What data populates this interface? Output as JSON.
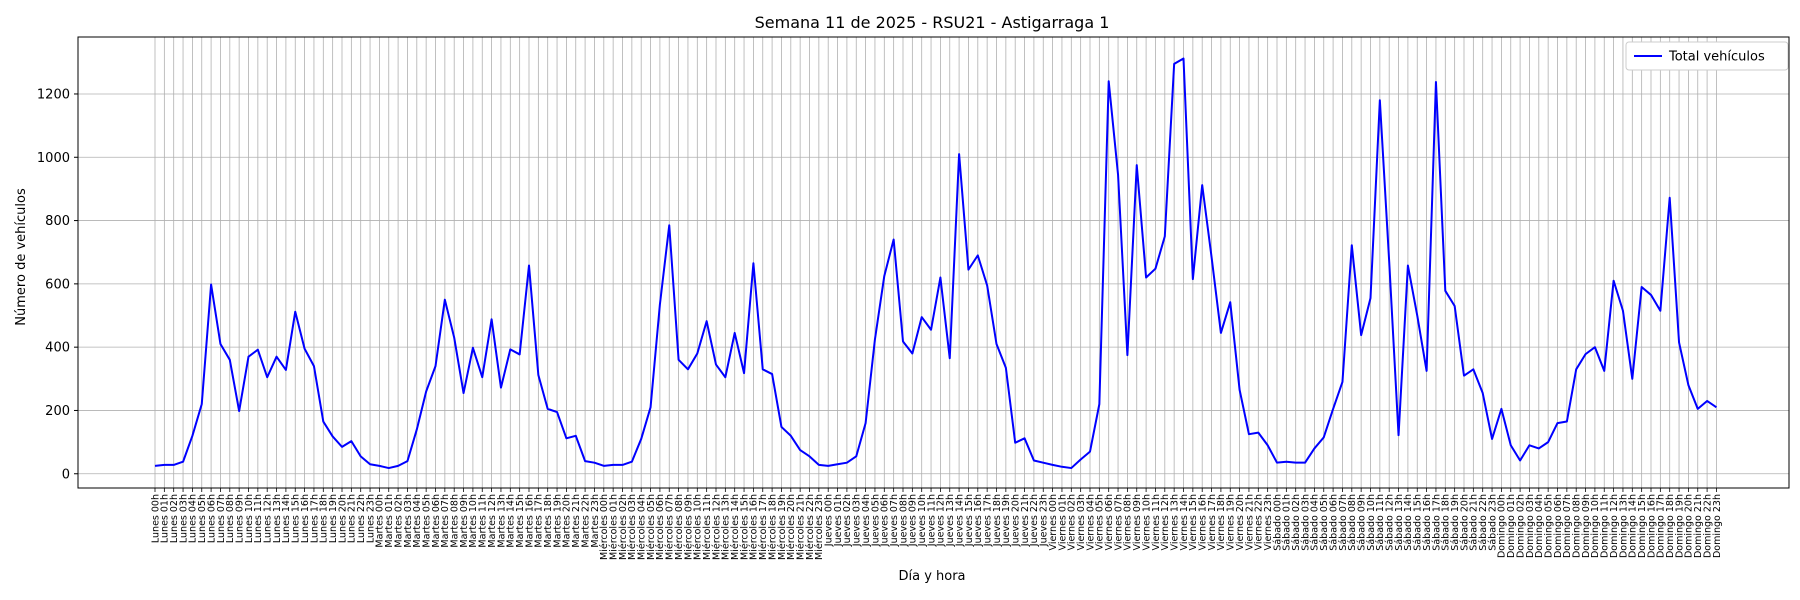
{
  "chart_data": {
    "type": "line",
    "title": "Semana 11 de 2025 - RSU21 - Astigarraga 1",
    "xlabel": "Día y hora",
    "ylabel": "Número de vehículos",
    "ylim": [
      -45,
      1380
    ],
    "yticks": [
      0,
      200,
      400,
      600,
      800,
      1000,
      1200
    ],
    "grid": true,
    "legend_position": "top-right",
    "days": [
      "Lunes",
      "Martes",
      "Miércoles",
      "Jueves",
      "Viernes",
      "Sábado",
      "Domingo"
    ],
    "hours": [
      "00h",
      "01h",
      "02h",
      "03h",
      "04h",
      "05h",
      "06h",
      "07h",
      "08h",
      "09h",
      "10h",
      "11h",
      "12h",
      "13h",
      "14h",
      "15h",
      "16h",
      "17h",
      "18h",
      "19h",
      "20h",
      "21h",
      "22h",
      "23h"
    ],
    "series": [
      {
        "name": "Total vehículos",
        "color": "#0000ff",
        "values": [
          25,
          28,
          28,
          38,
          120,
          220,
          598,
          410,
          360,
          198,
          370,
          392,
          305,
          370,
          328,
          512,
          395,
          340,
          165,
          118,
          85,
          103,
          55,
          30,
          25,
          18,
          25,
          40,
          140,
          260,
          340,
          550,
          430,
          255,
          398,
          305,
          488,
          272,
          393,
          377,
          658,
          312,
          205,
          195,
          112,
          120,
          40,
          35,
          25,
          28,
          28,
          38,
          110,
          210,
          535,
          785,
          360,
          330,
          380,
          482,
          345,
          305,
          445,
          318,
          665,
          330,
          315,
          148,
          120,
          75,
          55,
          28,
          25,
          30,
          35,
          55,
          160,
          425,
          625,
          740,
          418,
          380,
          495,
          455,
          620,
          365,
          1010,
          645,
          690,
          595,
          410,
          335,
          98,
          112,
          42,
          35,
          28,
          22,
          18,
          45,
          70,
          220,
          1240,
          945,
          375,
          975,
          620,
          648,
          750,
          1295,
          1312,
          615,
          912,
          685,
          445,
          542,
          265,
          125,
          130,
          90,
          35,
          38,
          35,
          35,
          80,
          115,
          205,
          290,
          722,
          438,
          555,
          1180,
          670,
          122,
          658,
          500,
          325,
          1238,
          578,
          530,
          310,
          330,
          255,
          110,
          205,
          90,
          42,
          90,
          80,
          100,
          160,
          165,
          330,
          378,
          400,
          325,
          610,
          515,
          300,
          590,
          565,
          515,
          872,
          415,
          280,
          205,
          230,
          210
        ]
      }
    ]
  }
}
